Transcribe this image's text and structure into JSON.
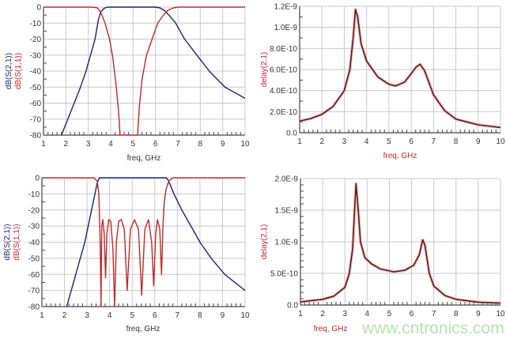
{
  "colors": {
    "s21": "#1f1f7a",
    "s11": "#c0282a",
    "delay": "#5a1a1a",
    "delay_glow": "#f0a0a0",
    "grid": "#c8c8c8",
    "axis": "#444444",
    "watermark": "#b7e3b0"
  },
  "watermark": "www.cntronics.com",
  "chart_data": [
    {
      "type": "line",
      "xlabel": "freq, GHz",
      "ylabel_lines": [
        "dB(S(2,1))",
        "dB(S(1,1))"
      ],
      "xlim": [
        1,
        10
      ],
      "ylim": [
        -80,
        0
      ],
      "xticks": [
        "1",
        "2",
        "3",
        "4",
        "5",
        "6",
        "7",
        "8",
        "9",
        "10"
      ],
      "yticks": [
        "0",
        "-10",
        "-20",
        "-30",
        "-40",
        "-50",
        "-60",
        "-70",
        "-80"
      ],
      "grid": true,
      "series": [
        {
          "name": "dB(S(2,1))",
          "color": "s21",
          "x": [
            1.8,
            2.2,
            2.6,
            2.9,
            3.1,
            3.3,
            3.45,
            3.55,
            3.7,
            3.85,
            6.0,
            6.2,
            6.4,
            6.6,
            6.9,
            7.3,
            7.85,
            8.4,
            9.1,
            10
          ],
          "y": [
            -80,
            -66,
            -52,
            -40,
            -30,
            -20,
            -8,
            -3,
            -0.8,
            0,
            0,
            -0.5,
            -2,
            -5,
            -10,
            -20,
            -30,
            -40,
            -50,
            -57
          ]
        },
        {
          "name": "dB(S(1,1))",
          "color": "s11",
          "x": [
            1,
            3.2,
            3.4,
            3.55,
            3.75,
            3.95,
            4.1,
            4.25,
            4.35,
            4.42,
            5.2,
            5.28,
            5.4,
            5.6,
            5.85,
            6.1,
            6.35,
            6.55,
            6.8,
            7,
            10
          ],
          "y": [
            0,
            0,
            -0.5,
            -3,
            -10,
            -20,
            -32,
            -50,
            -65,
            -80,
            -80,
            -62,
            -45,
            -30,
            -20,
            -10,
            -5,
            -2,
            -0.5,
            0,
            0
          ]
        }
      ]
    },
    {
      "type": "line",
      "xlabel": "freq, GHz",
      "ylabel_lines": [
        "delay(2,1)"
      ],
      "xlim": [
        1,
        10
      ],
      "ylim": [
        0,
        1.2e-09
      ],
      "xticks": [
        "1",
        "2",
        "3",
        "4",
        "5",
        "6",
        "7",
        "8",
        "9",
        "10"
      ],
      "yticks": [
        "1.2E-9",
        "1.0E-9",
        "8.0E-10",
        "6.0E-10",
        "4.0E-10",
        "2.0E-10",
        "0.0"
      ],
      "grid": true,
      "series": [
        {
          "name": "delay(2,1)",
          "color": "delay",
          "x": [
            1,
            1.5,
            2,
            2.5,
            3,
            3.25,
            3.4,
            3.5,
            3.6,
            3.75,
            4,
            4.5,
            5,
            5.3,
            5.7,
            6,
            6.2,
            6.4,
            6.6,
            7,
            7.5,
            8,
            9,
            10
          ],
          "y": [
            1.1e-10,
            1.35e-10,
            1.75e-10,
            2.5e-10,
            4e-10,
            6e-10,
            9e-10,
            1.17e-09,
            1.1e-09,
            8.5e-10,
            6.8e-10,
            5.3e-10,
            4.6e-10,
            4.45e-10,
            4.8e-10,
            5.6e-10,
            6.2e-10,
            6.5e-10,
            5.9e-10,
            3.6e-10,
            2.1e-10,
            1.3e-10,
            7.5e-11,
            5e-11
          ]
        }
      ]
    },
    {
      "type": "line",
      "xlabel": "freq, GHz",
      "ylabel_lines": [
        "dB(S(2,1))",
        "dB(S(1,1))"
      ],
      "xlim": [
        1,
        10
      ],
      "ylim": [
        -80,
        0
      ],
      "xticks": [
        "1",
        "2",
        "3",
        "4",
        "5",
        "6",
        "7",
        "8",
        "9",
        "10"
      ],
      "yticks": [
        "0",
        "-10",
        "-20",
        "-30",
        "-40",
        "-50",
        "-60",
        "-70",
        "-80"
      ],
      "grid": true,
      "series": [
        {
          "name": "dB(S(2,1))",
          "color": "s21",
          "x": [
            2.1,
            2.5,
            2.9,
            3.2,
            3.35,
            3.45,
            3.55,
            6.5,
            6.6,
            6.7,
            6.85,
            7.2,
            7.6,
            8.0,
            8.5,
            9.1,
            10
          ],
          "y": [
            -80,
            -60,
            -40,
            -20,
            -10,
            -3,
            0,
            0,
            -1.5,
            -5,
            -10,
            -20,
            -30,
            -40,
            -50,
            -60,
            -70
          ]
        },
        {
          "name": "dB(S(1,1))",
          "color": "s11",
          "x": [
            1,
            3.3,
            3.45,
            3.52,
            3.58,
            3.62,
            3.65,
            3.7,
            3.76,
            3.82,
            3.88,
            3.96,
            4.05,
            4.15,
            4.22,
            4.3,
            4.4,
            4.52,
            4.65,
            4.78,
            4.92,
            5.1,
            5.28,
            5.42,
            5.56,
            5.72,
            5.86,
            5.95,
            6.04,
            6.12,
            6.22,
            6.3,
            6.36,
            6.42,
            6.5,
            6.62,
            6.8,
            10
          ],
          "y": [
            0,
            0,
            -2,
            -10,
            -40,
            -80,
            -30,
            -26,
            -35,
            -62,
            -35,
            -26,
            -27,
            -45,
            -80,
            -40,
            -27,
            -26,
            -32,
            -70,
            -32,
            -26,
            -32,
            -73,
            -32,
            -26,
            -40,
            -67,
            -35,
            -26,
            -32,
            -60,
            -30,
            -15,
            -7,
            -2,
            0,
            0
          ]
        }
      ]
    },
    {
      "type": "line",
      "xlabel": "freq, GHz",
      "ylabel_lines": [
        "delay(2,1)"
      ],
      "xlim": [
        1,
        10
      ],
      "ylim": [
        0,
        2e-09
      ],
      "xticks": [
        "1",
        "2",
        "3",
        "4",
        "5",
        "6",
        "7",
        "8",
        "9",
        "10"
      ],
      "yticks": [
        "2.0E-9",
        "1.5E-9",
        "1.0E-9",
        "5.0E-10",
        "0.0"
      ],
      "grid": true,
      "series": [
        {
          "name": "delay(2,1)",
          "color": "delay",
          "x": [
            1,
            2,
            2.5,
            3,
            3.2,
            3.35,
            3.45,
            3.5,
            3.6,
            3.7,
            3.9,
            4.2,
            4.6,
            5.2,
            5.7,
            6.1,
            6.35,
            6.5,
            6.6,
            6.8,
            7,
            7.5,
            8,
            9,
            10
          ],
          "y": [
            5e-11,
            9e-11,
            1.4e-10,
            2.8e-10,
            5e-10,
            9e-10,
            1.6e-09,
            1.92e-09,
            1.5e-09,
            1e-09,
            7.5e-10,
            6.5e-10,
            5.7e-10,
            5.25e-10,
            5.5e-10,
            6.3e-10,
            8e-10,
            1.03e-09,
            9.5e-10,
            5e-10,
            3e-10,
            1.5e-10,
            9e-11,
            4.5e-11,
            3e-11
          ]
        }
      ]
    }
  ]
}
